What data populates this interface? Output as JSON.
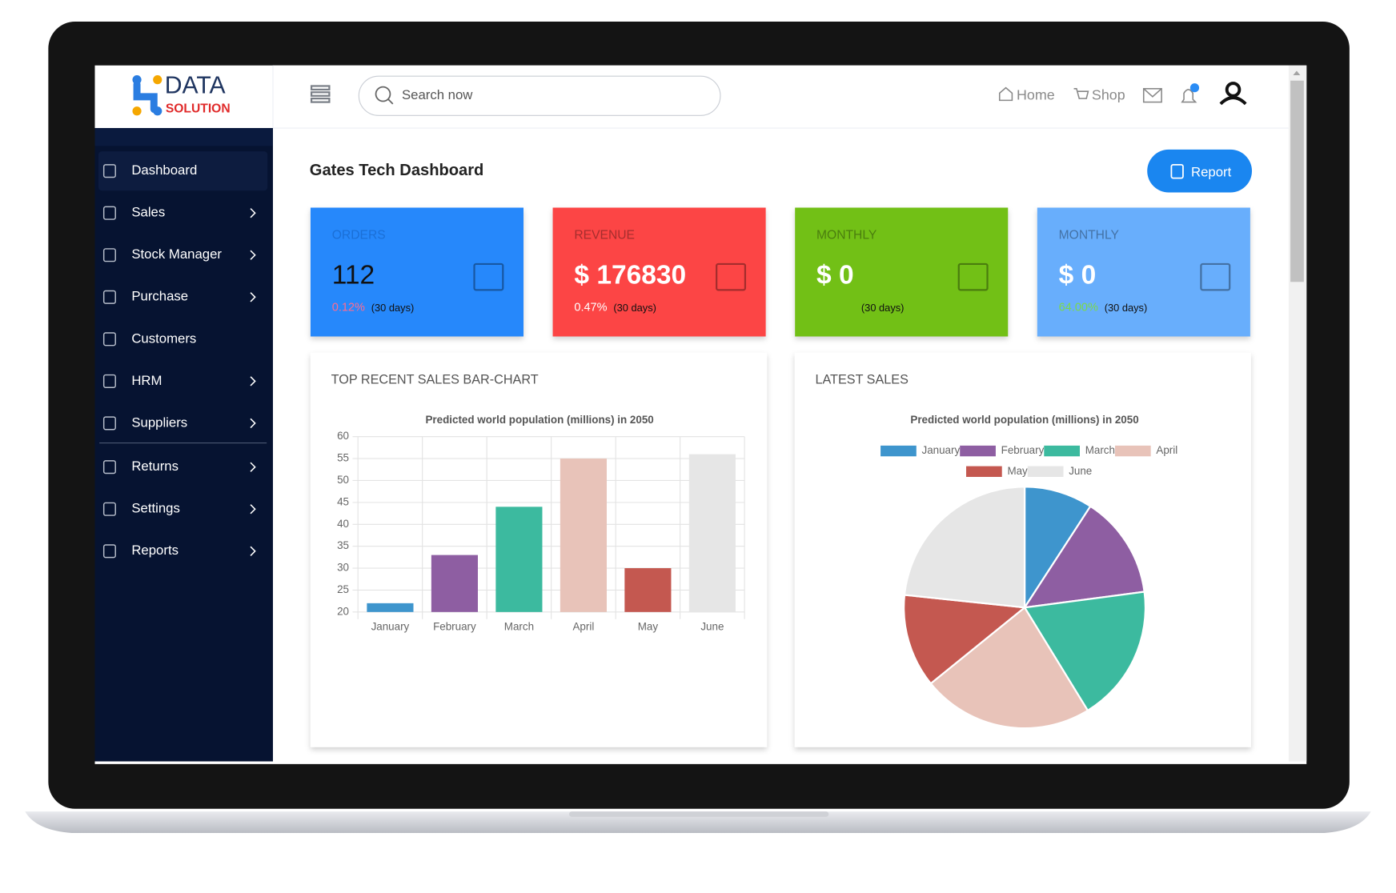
{
  "logo": {
    "top": "DATA",
    "bottom": "SOLUTION"
  },
  "header": {
    "search_placeholder": "Search now",
    "links": [
      "Home",
      "Shop"
    ]
  },
  "sidebar": {
    "items": [
      {
        "label": "Dashboard",
        "submenu": false,
        "active": true
      },
      {
        "label": "Sales",
        "submenu": true
      },
      {
        "label": "Stock Manager",
        "submenu": true
      },
      {
        "label": "Purchase",
        "submenu": true
      },
      {
        "label": "Customers",
        "submenu": false
      },
      {
        "label": "HRM",
        "submenu": true
      },
      {
        "label": "Suppliers",
        "submenu": true
      },
      {
        "label": "Returns",
        "submenu": true
      },
      {
        "label": "Settings",
        "submenu": true
      },
      {
        "label": "Reports",
        "submenu": true
      }
    ]
  },
  "page": {
    "title": "Gates Tech Dashboard",
    "button": "Report"
  },
  "cards": [
    {
      "label": "ORDERS",
      "value": "112",
      "change": "0.12%",
      "period": "(30 days)",
      "color": "#2888fb"
    },
    {
      "label": "REVENUE",
      "value": "$ 176830",
      "change": "0.47%",
      "period": "(30 days)",
      "color": "#fc4545"
    },
    {
      "label": "MONTHLY",
      "value": "$ 0",
      "period": "(30 days)",
      "color": "#72c017"
    },
    {
      "label": "MONTHLY",
      "value": "$ 0",
      "change": "64.00%",
      "period": "(30 days)",
      "color": "#68aefc"
    }
  ],
  "panels": [
    "TOP RECENT SALES BAR-CHART",
    "LATEST SALES"
  ],
  "chart_data": [
    {
      "type": "bar",
      "title": "Predicted world population (millions) in 2050",
      "categories": [
        "January",
        "February",
        "March",
        "April",
        "May",
        "June"
      ],
      "values": [
        22,
        33,
        44,
        55,
        30,
        56
      ],
      "colors": [
        "#3e95cd",
        "#8e5ea2",
        "#3cba9f",
        "#e8c3b9",
        "#c45850",
        "#e6e6e6"
      ],
      "ylim": [
        20,
        60
      ],
      "yticks": [
        20,
        25,
        30,
        35,
        40,
        45,
        50,
        55,
        60
      ],
      "grid": true
    },
    {
      "type": "pie",
      "title": "Predicted world population (millions) in 2050",
      "categories": [
        "January",
        "February",
        "March",
        "April",
        "May",
        "June"
      ],
      "values": [
        22,
        33,
        44,
        55,
        30,
        56
      ],
      "colors": [
        "#3e95cd",
        "#8e5ea2",
        "#3cba9f",
        "#e8c3b9",
        "#c45850",
        "#e6e6e6"
      ],
      "legend": "top"
    }
  ]
}
